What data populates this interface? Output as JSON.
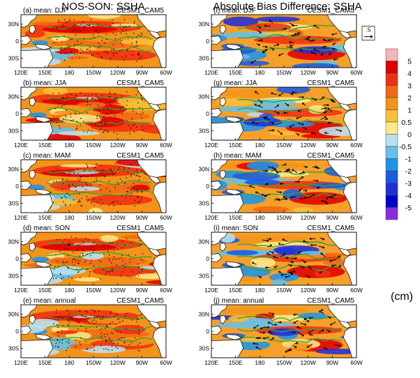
{
  "column_titles": {
    "left": "NOS-SON: SSHA",
    "right": "Absolute Bias Difference: SSHA"
  },
  "panels": [
    {
      "label": "(a) mean: DJF",
      "model": "CESM1_CAM5",
      "kind": "mean",
      "variant": 0
    },
    {
      "label": "(f) mean: DJF",
      "model": "CESM1_CAM5",
      "kind": "diff",
      "variant": 0
    },
    {
      "label": "(b) mean: JJA",
      "model": "CESM1_CAM5",
      "kind": "mean",
      "variant": 1
    },
    {
      "label": "(g) mean: JJA",
      "model": "CESM1_CAM5",
      "kind": "diff",
      "variant": 1
    },
    {
      "label": "(c) mean: MAM",
      "model": "CESM1_CAM5",
      "kind": "mean",
      "variant": 2
    },
    {
      "label": "(h) mean: MAM",
      "model": "CESM1_CAM5",
      "kind": "diff",
      "variant": 2
    },
    {
      "label": "(d) mean: SON",
      "model": "CESM1_CAM5",
      "kind": "mean",
      "variant": 3
    },
    {
      "label": "(i) mean: SON",
      "model": "CESM1_CAM5",
      "kind": "diff",
      "variant": 3
    },
    {
      "label": "(e) mean: annual",
      "model": "CESM1_CAM5",
      "kind": "mean",
      "variant": 4
    },
    {
      "label": "(j) mean: annual",
      "model": "CESM1_CAM5",
      "kind": "diff",
      "variant": 4
    }
  ],
  "axes": {
    "x_ticks": [
      "120E",
      "150E",
      "180",
      "150W",
      "120W",
      "90W",
      "60W"
    ],
    "y_ticks": [
      "30N",
      "0",
      "30S"
    ]
  },
  "vector_reference": ".5",
  "colorbar": {
    "labels": [
      "5",
      "4",
      "3",
      "2",
      "1",
      "0.5",
      "0",
      "-0.5",
      "-1",
      "-2",
      "-3",
      "-4",
      "-5"
    ],
    "colors": [
      "#f5b6b6",
      "#e00000",
      "#f03010",
      "#f06a14",
      "#f29419",
      "#f7c038",
      "#fde98a",
      "#b8e0f2",
      "#64c0ec",
      "#1e94e8",
      "#1a5ae0",
      "#2030d8",
      "#0000d0",
      "#8a2be2"
    ],
    "unit": "(cm)"
  },
  "colors": {
    "ocean_base": "#f29419",
    "land": "#ffffff",
    "coast": "#000000",
    "contour": "#33a532",
    "arrow": "#000000"
  },
  "chart_data": {
    "type": "heatmap",
    "title": "NOS-SON: SSHA",
    "xlim": [
      "120E",
      "60W"
    ],
    "ylim": [
      "30S",
      "30N"
    ],
    "color_scale": [
      -5,
      -4,
      -3,
      -2,
      -1,
      -0.5,
      0,
      0.5,
      1,
      2,
      3,
      4,
      5
    ],
    "unit": "cm",
    "panels": [
      "(a) mean: DJF",
      "(b) mean: JJA",
      "(c) mean: MAM",
      "(d) mean: SON",
      "(e) mean: annual",
      "(f) mean: DJF",
      "(g) mean: JJA",
      "(h) mean: MAM",
      "(i) mean: SON",
      "(j) mean: annual"
    ]
  }
}
